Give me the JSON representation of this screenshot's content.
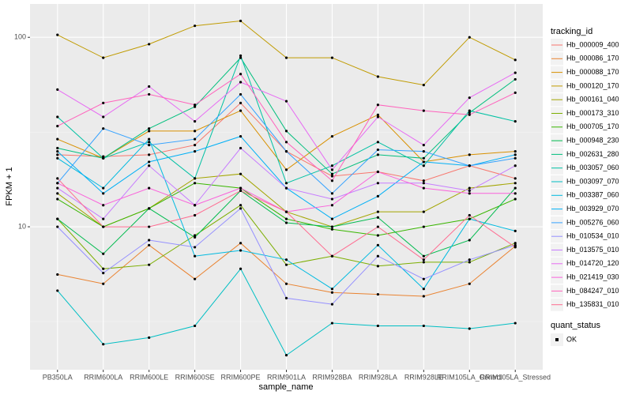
{
  "chart_data": {
    "type": "line",
    "x_label": "sample_name",
    "y_label": "FPKM + 1",
    "y_scale": "log",
    "grid": true,
    "ylim": [
      1.76,
      150
    ],
    "yticks": [
      10,
      100
    ],
    "categories": [
      "PB350LA",
      "RRIM600LA",
      "RRIM600LE",
      "RRIM600SE",
      "RRIM600PE",
      "RRIM901LA",
      "RRIM928BA",
      "RRIM928LA",
      "RRIM928LE",
      "RRIM105LA_Control",
      "RRIM105LA_Stressed"
    ],
    "legend_title": "tracking_id",
    "legend_position": "right",
    "point_legend": {
      "title": "quant_status",
      "labels": [
        "OK"
      ],
      "color": "#000000"
    },
    "series": [
      {
        "name": "Hb_000009_400",
        "color": "#F8766D",
        "values": [
          24,
          23.5,
          24,
          27,
          45,
          25,
          18.5,
          19.5,
          17.5,
          21,
          18
        ]
      },
      {
        "name": "Hb_000086_170",
        "color": "#EA8331",
        "values": [
          5.6,
          5,
          8,
          5.3,
          8.2,
          5,
          4.5,
          4.4,
          4.3,
          5,
          7.9
        ]
      },
      {
        "name": "Hb_000088_170",
        "color": "#D89000",
        "values": [
          29,
          23,
          32,
          32,
          41,
          20,
          30,
          39,
          22,
          24,
          25
        ]
      },
      {
        "name": "Hb_000120_170",
        "color": "#C09B00",
        "values": [
          103,
          78,
          92,
          115,
          122,
          78,
          78,
          62,
          56,
          100,
          76
        ]
      },
      {
        "name": "Hb_000161_040",
        "color": "#A3A500",
        "values": [
          15,
          10,
          12.5,
          18,
          19,
          12,
          10,
          12,
          12,
          16,
          17
        ]
      },
      {
        "name": "Hb_000173_310",
        "color": "#7CAE00",
        "values": [
          11,
          6,
          6.3,
          9,
          13,
          6.3,
          7,
          6.2,
          6.5,
          6.5,
          8.2
        ]
      },
      {
        "name": "Hb_000705_170",
        "color": "#39B600",
        "values": [
          14,
          10,
          12.5,
          17,
          16,
          11,
          9.7,
          9,
          10,
          11,
          14
        ]
      },
      {
        "name": "Hb_000948_230",
        "color": "#00BB4E",
        "values": [
          11,
          7.2,
          12.5,
          8.8,
          15.5,
          10.5,
          10,
          11.2,
          7,
          8.5,
          16
        ]
      },
      {
        "name": "Hb_002631_280",
        "color": "#00BF7D",
        "values": [
          26,
          23,
          33,
          43,
          78,
          32,
          19,
          24,
          23,
          40,
          60
        ]
      },
      {
        "name": "Hb_003057_060",
        "color": "#00C1A3",
        "values": [
          38,
          23,
          28,
          18,
          80,
          17,
          21,
          28,
          21,
          41,
          36
        ]
      },
      {
        "name": "Hb_003097_070",
        "color": "#00BFC4",
        "values": [
          4.6,
          2.4,
          2.6,
          3,
          6,
          2.1,
          3.1,
          3,
          3,
          2.9,
          3.1
        ]
      },
      {
        "name": "Hb_003387_060",
        "color": "#00BAE0",
        "values": [
          23,
          16,
          29,
          7,
          7.5,
          6.7,
          4.7,
          8,
          4.7,
          11,
          9.5
        ]
      },
      {
        "name": "Hb_003929_070",
        "color": "#00B0F6",
        "values": [
          25,
          15,
          22,
          25,
          30,
          16,
          11,
          14.5,
          22,
          21,
          24
        ]
      },
      {
        "name": "Hb_005276_060",
        "color": "#35A2FF",
        "values": [
          17,
          33,
          27,
          29,
          50,
          25,
          15,
          25.5,
          25,
          21,
          23
        ]
      },
      {
        "name": "Hb_010534_010",
        "color": "#9590FF",
        "values": [
          10,
          5.7,
          8.5,
          7.8,
          12.5,
          4.2,
          3.9,
          7,
          5.3,
          6.7,
          8
        ]
      },
      {
        "name": "Hb_013575_010",
        "color": "#C77CFF",
        "values": [
          16,
          11,
          21,
          13,
          26,
          16,
          14,
          17,
          17,
          15.5,
          21
        ]
      },
      {
        "name": "Hb_014720_120",
        "color": "#E76BF3",
        "values": [
          53,
          38,
          55,
          36,
          58,
          46,
          20,
          38,
          27,
          48,
          65
        ]
      },
      {
        "name": "Hb_021419_030",
        "color": "#FA62DB",
        "values": [
          17,
          13,
          16,
          13,
          16,
          12,
          13,
          19.5,
          16,
          15,
          15
        ]
      },
      {
        "name": "Hb_084247_010",
        "color": "#FF62BC",
        "values": [
          34,
          45,
          50,
          44,
          64,
          28,
          17.5,
          44,
          41,
          39,
          51
        ]
      },
      {
        "name": "Hb_135831_010",
        "color": "#FF6C91",
        "values": [
          18,
          10,
          10,
          11.5,
          15.5,
          12,
          7,
          10,
          6.7,
          11.5,
          7.8
        ]
      }
    ]
  }
}
